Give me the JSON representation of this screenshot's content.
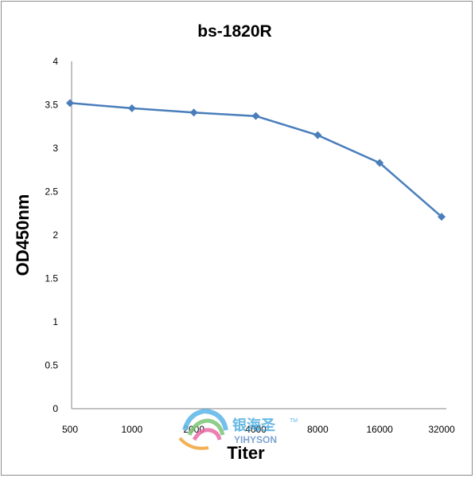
{
  "chart_data": {
    "type": "line",
    "title": "bs-1820R",
    "xlabel": "Titer",
    "ylabel": "OD450nm",
    "categories": [
      "500",
      "1000",
      "2000",
      "4000",
      "8000",
      "16000",
      "32000"
    ],
    "series": [
      {
        "values": [
          3.52,
          3.46,
          3.41,
          3.37,
          3.15,
          2.83,
          2.21
        ]
      }
    ],
    "ylim": [
      0,
      4
    ],
    "yticks": [
      "0",
      "0.5",
      "1",
      "1.5",
      "2",
      "2.5",
      "3",
      "3.5",
      "4"
    ],
    "grid": false,
    "legend": "none",
    "line_color": "#4a7ebb"
  },
  "watermark": {
    "chinese": "银海圣",
    "latin": "YIHYSON",
    "tm": "TM"
  }
}
